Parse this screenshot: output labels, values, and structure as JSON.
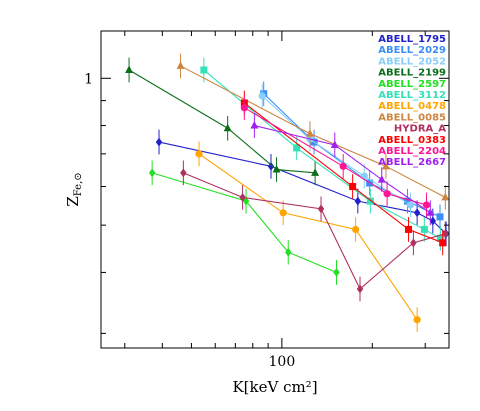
{
  "chart_data": {
    "type": "scatter",
    "xlabel": "K[keV cm²]",
    "ylabel": "Z",
    "ylabel_sub": "Fe,⊙",
    "xscale": "log",
    "yscale": "log",
    "xlim": [
      25,
      360
    ],
    "ylim": [
      0.28,
      1.25
    ],
    "xticks": [
      {
        "value": 100,
        "label": "100"
      }
    ],
    "yticks": [
      {
        "value": 1,
        "label": "1"
      }
    ],
    "legend_position": "top-right",
    "series": [
      {
        "name": "ABELL_1795",
        "color": "#2222cc",
        "marker": "diamond",
        "points": [
          [
            39,
            0.74
          ],
          [
            92,
            0.66
          ],
          [
            179,
            0.56
          ],
          [
            282,
            0.53
          ],
          [
            318,
            0.51
          ],
          [
            352,
            0.48
          ]
        ]
      },
      {
        "name": "ABELL_2029",
        "color": "#3a8ef5",
        "marker": "square",
        "points": [
          [
            87,
            0.93
          ],
          [
            128,
            0.74
          ],
          [
            196,
            0.61
          ],
          [
            262,
            0.56
          ],
          [
            336,
            0.52
          ]
        ]
      },
      {
        "name": "ABELL_2052",
        "color": "#87cefa",
        "marker": "circle",
        "points": [
          [
            86,
            0.92
          ],
          [
            124,
            0.75
          ],
          [
            188,
            0.63
          ],
          [
            268,
            0.55
          ]
        ]
      },
      {
        "name": "ABELL_2199",
        "color": "#0b6e1a",
        "marker": "triangle",
        "points": [
          [
            31,
            1.04
          ],
          [
            66,
            0.79
          ],
          [
            96,
            0.65
          ],
          [
            129,
            0.64
          ]
        ]
      },
      {
        "name": "ABELL_2597",
        "color": "#22e022",
        "marker": "diamond",
        "points": [
          [
            37,
            0.64
          ],
          [
            76,
            0.56
          ],
          [
            105,
            0.44
          ],
          [
            152,
            0.4
          ]
        ]
      },
      {
        "name": "ABELL_3112",
        "color": "#33e0b8",
        "marker": "square",
        "points": [
          [
            55,
            1.04
          ],
          [
            112,
            0.72
          ],
          [
            197,
            0.56
          ],
          [
            298,
            0.49
          ],
          [
            337,
            0.47
          ]
        ]
      },
      {
        "name": "ABELL_0478",
        "color": "#ffa500",
        "marker": "circle",
        "points": [
          [
            53,
            0.7
          ],
          [
            101,
            0.53
          ],
          [
            176,
            0.49
          ],
          [
            282,
            0.32
          ]
        ]
      },
      {
        "name": "ABELL_0085",
        "color": "#cd853f",
        "marker": "triangle",
        "points": [
          [
            46,
            1.06
          ],
          [
            124,
            0.77
          ],
          [
            222,
            0.66
          ],
          [
            350,
            0.57
          ]
        ]
      },
      {
        "name": "HYDRA_A",
        "color": "#b03060",
        "marker": "diamond",
        "points": [
          [
            47,
            0.64
          ],
          [
            74,
            0.57
          ],
          [
            135,
            0.54
          ],
          [
            182,
            0.37
          ],
          [
            274,
            0.46
          ],
          [
            350,
            0.48
          ]
        ]
      },
      {
        "name": "ABELL_0383",
        "color": "#ff0000",
        "marker": "square",
        "points": [
          [
            75,
            0.89
          ],
          [
            172,
            0.6
          ],
          [
            264,
            0.49
          ],
          [
            343,
            0.46
          ]
        ]
      },
      {
        "name": "ABELL_2204",
        "color": "#ff1493",
        "marker": "circle",
        "points": [
          [
            75,
            0.87
          ],
          [
            160,
            0.66
          ],
          [
            224,
            0.58
          ],
          [
            303,
            0.55
          ]
        ]
      },
      {
        "name": "ABELL_2667",
        "color": "#a020f0",
        "marker": "triangle",
        "points": [
          [
            81,
            0.8
          ],
          [
            150,
            0.73
          ],
          [
            215,
            0.62
          ],
          [
            312,
            0.53
          ]
        ]
      }
    ]
  }
}
